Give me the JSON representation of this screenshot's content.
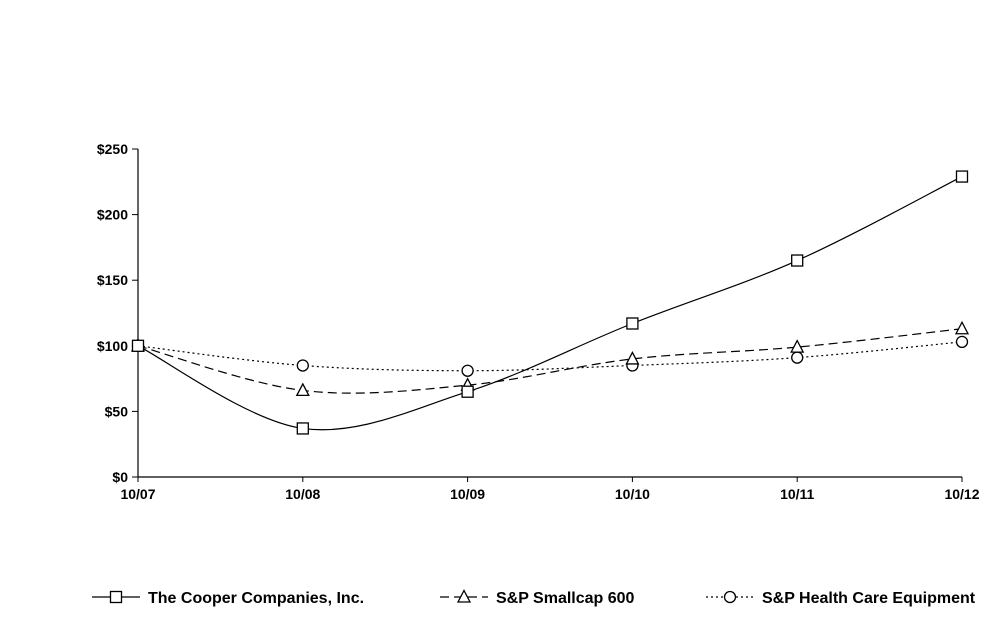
{
  "chart_data": {
    "type": "line",
    "title": "",
    "xlabel": "",
    "ylabel": "",
    "categories": [
      "10/07",
      "10/08",
      "10/09",
      "10/10",
      "10/11",
      "10/12"
    ],
    "y_ticks": [
      "$0",
      "$50",
      "$100",
      "$150",
      "$200",
      "$250"
    ],
    "ylim": [
      0,
      250
    ],
    "grid": false,
    "legend_position": "bottom",
    "series": [
      {
        "name": "The Cooper Companies, Inc.",
        "marker": "square",
        "line": "solid",
        "values": [
          100,
          37,
          65,
          117,
          165,
          229
        ]
      },
      {
        "name": "S&P Smallcap 600",
        "marker": "triangle",
        "line": "dashed",
        "values": [
          100,
          66,
          70,
          90,
          99,
          113
        ]
      },
      {
        "name": "S&P Health Care Equipment",
        "marker": "circle",
        "line": "dotted",
        "values": [
          100,
          85,
          81,
          85,
          91,
          103
        ]
      }
    ]
  }
}
